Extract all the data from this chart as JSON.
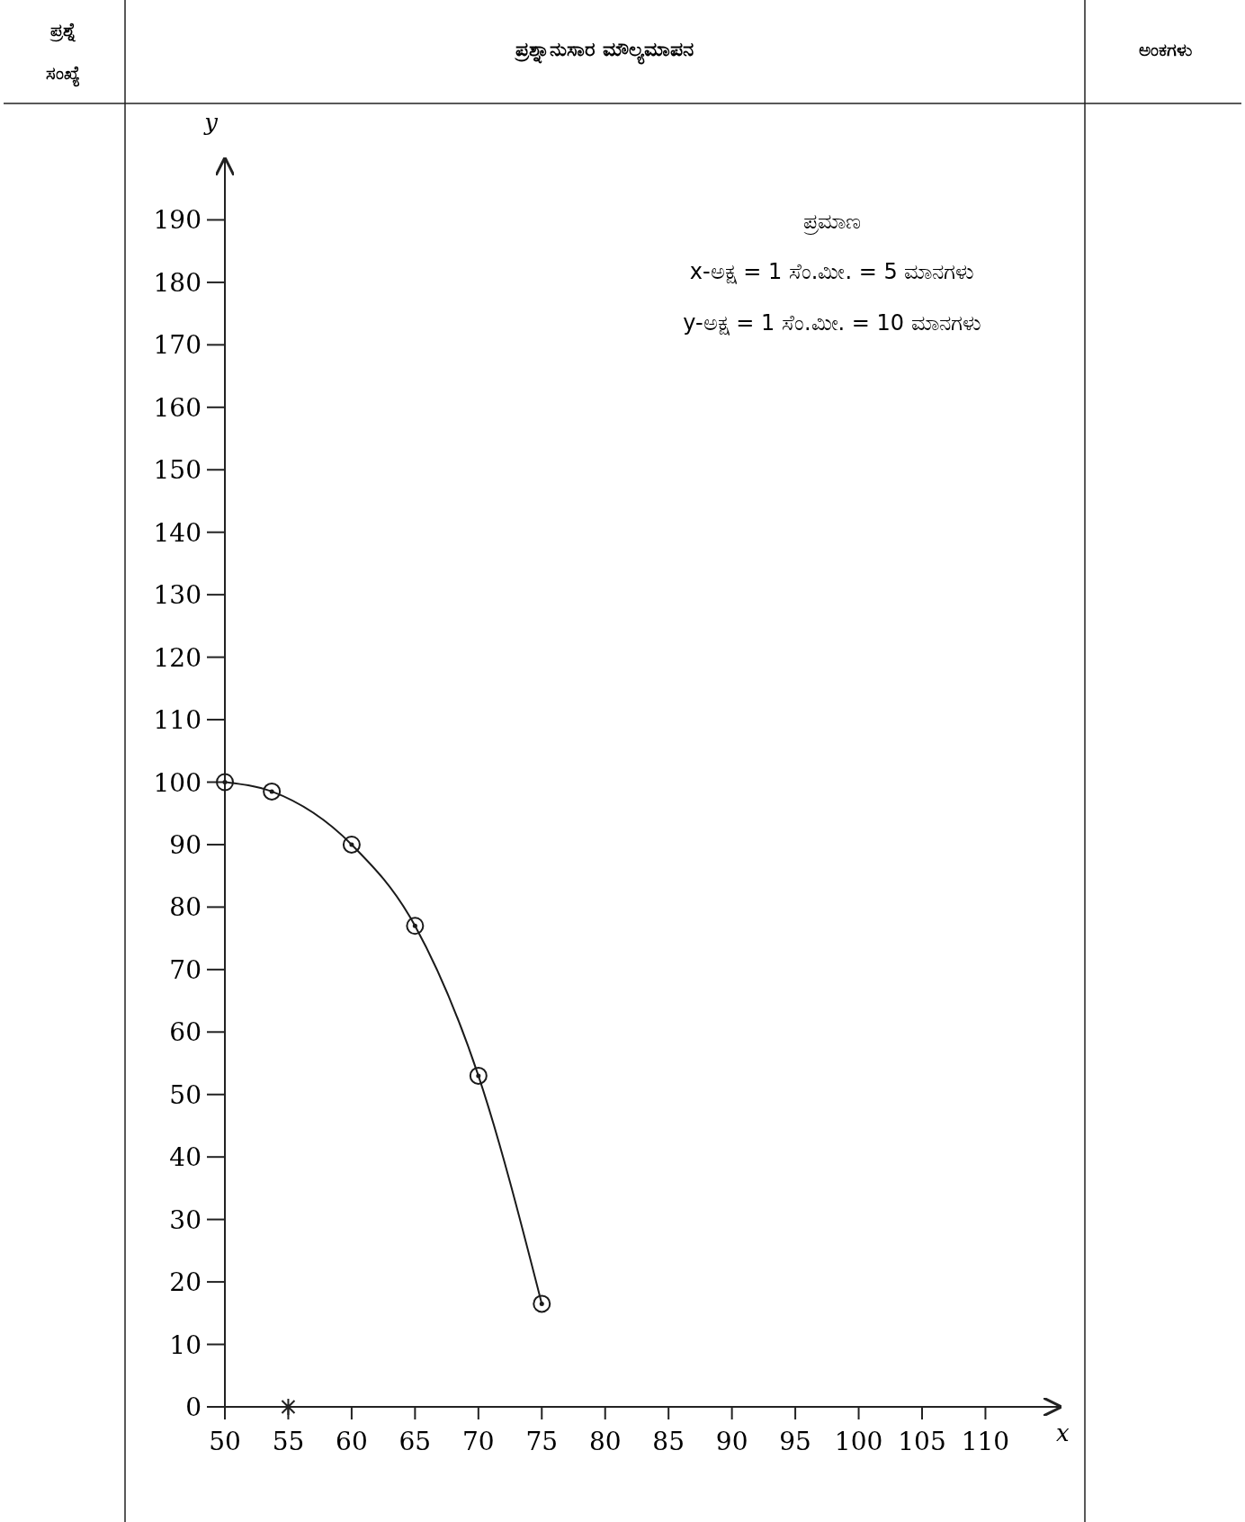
{
  "chart_data": {
    "type": "line",
    "xlabel": "x",
    "ylabel": "y",
    "x": [
      50,
      53.7,
      60,
      65,
      70,
      75
    ],
    "series": [
      {
        "color": "#1a1a1a",
        "values": [
          100,
          98.5,
          90,
          77,
          53,
          16.5
        ]
      }
    ],
    "xlim": [
      50,
      116
    ],
    "ylim": [
      0,
      200
    ],
    "xticks": [
      50,
      55,
      60,
      65,
      70,
      75,
      80,
      85,
      90,
      95,
      100,
      105,
      110
    ],
    "yticks": [
      0,
      10,
      20,
      30,
      40,
      50,
      60,
      70,
      80,
      90,
      100,
      110,
      120,
      130,
      140,
      150,
      160,
      170,
      180,
      190
    ],
    "marker": "circle",
    "line_style": "solid",
    "grid": false,
    "annotations": [
      "ಪ್ರಶ್ನೆ ಸಂಖ್ಯೆ",
      "ಪ್ರಶ್ನಾನುಸಾರ ಮೌಲ್ಯಮಾಪನ",
      "ಅಂಕಗಳು",
      "ಪ್ರಮಾಣ",
      "x-ಅಕ್ಷ = 1 ಸೆಂ.ಮೀ. = 5 ಮಾನಗಳು",
      "y-ಅಕ್ಷ = 1 ಸೆಂ.ಮೀ. = 10 ಮಾನಗಳು"
    ]
  }
}
